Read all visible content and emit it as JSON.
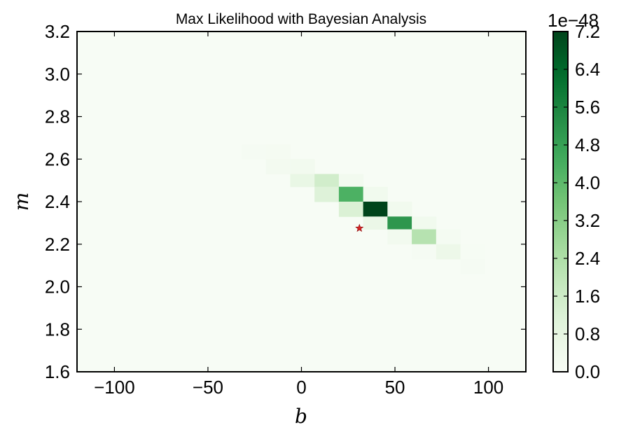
{
  "chart_data": {
    "type": "heatmap",
    "title": "Max Likelihood with Bayesian Analysis",
    "xlabel": "b",
    "ylabel": "m",
    "xlim": [
      -120,
      120
    ],
    "ylim": [
      1.6,
      3.2
    ],
    "xticks": [
      -100,
      -50,
      0,
      50,
      100
    ],
    "xtick_labels": [
      "−100",
      "−50",
      "0",
      "50",
      "100"
    ],
    "yticks": [
      1.6,
      1.8,
      2.0,
      2.2,
      2.4,
      2.6,
      2.8,
      3.0,
      3.2
    ],
    "ytick_labels": [
      "1.6",
      "1.8",
      "2.0",
      "2.2",
      "2.4",
      "2.6",
      "2.8",
      "3.0",
      "3.2"
    ],
    "colormap": "Greens",
    "colormap_stops": [
      "#f7fcf5",
      "#e5f5e0",
      "#c7e9c0",
      "#a1d99b",
      "#74c476",
      "#41ab5d",
      "#238b45",
      "#006d2c",
      "#00441b"
    ],
    "background_value": 0.0,
    "cells": [
      {
        "b": [
          -32,
          -19
        ],
        "m": [
          2.6,
          2.67
        ],
        "value": 0.08
      },
      {
        "b": [
          -19,
          -6
        ],
        "m": [
          2.6,
          2.67
        ],
        "value": 0.12
      },
      {
        "b": [
          -19,
          -6
        ],
        "m": [
          2.53,
          2.6
        ],
        "value": 0.22
      },
      {
        "b": [
          -6,
          7
        ],
        "m": [
          2.53,
          2.6
        ],
        "value": 0.25
      },
      {
        "b": [
          -6,
          7
        ],
        "m": [
          2.47,
          2.53
        ],
        "value": 0.7
      },
      {
        "b": [
          7,
          20
        ],
        "m": [
          2.47,
          2.53
        ],
        "value": 1.5
      },
      {
        "b": [
          20,
          33
        ],
        "m": [
          2.47,
          2.53
        ],
        "value": 0.25
      },
      {
        "b": [
          7,
          20
        ],
        "m": [
          2.4,
          2.47
        ],
        "value": 1.1
      },
      {
        "b": [
          20,
          33
        ],
        "m": [
          2.4,
          2.47
        ],
        "value": 4.3
      },
      {
        "b": [
          33,
          46
        ],
        "m": [
          2.4,
          2.47
        ],
        "value": 0.3
      },
      {
        "b": [
          20,
          33
        ],
        "m": [
          2.33,
          2.4
        ],
        "value": 1.2
      },
      {
        "b": [
          33,
          46
        ],
        "m": [
          2.33,
          2.4
        ],
        "value": 7.2
      },
      {
        "b": [
          46,
          59
        ],
        "m": [
          2.33,
          2.4
        ],
        "value": 0.3
      },
      {
        "b": [
          33,
          46
        ],
        "m": [
          2.27,
          2.33
        ],
        "value": 0.6
      },
      {
        "b": [
          46,
          59
        ],
        "m": [
          2.27,
          2.33
        ],
        "value": 5.1
      },
      {
        "b": [
          59,
          72
        ],
        "m": [
          2.27,
          2.33
        ],
        "value": 0.3
      },
      {
        "b": [
          46,
          59
        ],
        "m": [
          2.2,
          2.27
        ],
        "value": 0.25
      },
      {
        "b": [
          59,
          72
        ],
        "m": [
          2.2,
          2.27
        ],
        "value": 2.2
      },
      {
        "b": [
          72,
          85
        ],
        "m": [
          2.2,
          2.27
        ],
        "value": 0.15
      },
      {
        "b": [
          59,
          72
        ],
        "m": [
          2.13,
          2.2
        ],
        "value": 0.1
      },
      {
        "b": [
          72,
          85
        ],
        "m": [
          2.13,
          2.2
        ],
        "value": 0.5
      },
      {
        "b": [
          85,
          98
        ],
        "m": [
          2.13,
          2.2
        ],
        "value": 0.05
      },
      {
        "b": [
          85,
          98
        ],
        "m": [
          2.06,
          2.13
        ],
        "value": 0.08
      }
    ],
    "max_likelihood_point": {
      "b": 31,
      "m": 2.275,
      "marker": "star",
      "color": "#d62728"
    },
    "colorbar": {
      "min": 0.0,
      "max": 7.2,
      "ticks": [
        0.0,
        0.8,
        1.6,
        2.4,
        3.2,
        4.0,
        4.8,
        5.6,
        6.4,
        7.2
      ],
      "tick_labels": [
        "0.0",
        "0.8",
        "1.6",
        "2.4",
        "3.2",
        "4.0",
        "4.8",
        "5.6",
        "6.4",
        "7.2"
      ],
      "offset_label": "1e−48"
    }
  }
}
